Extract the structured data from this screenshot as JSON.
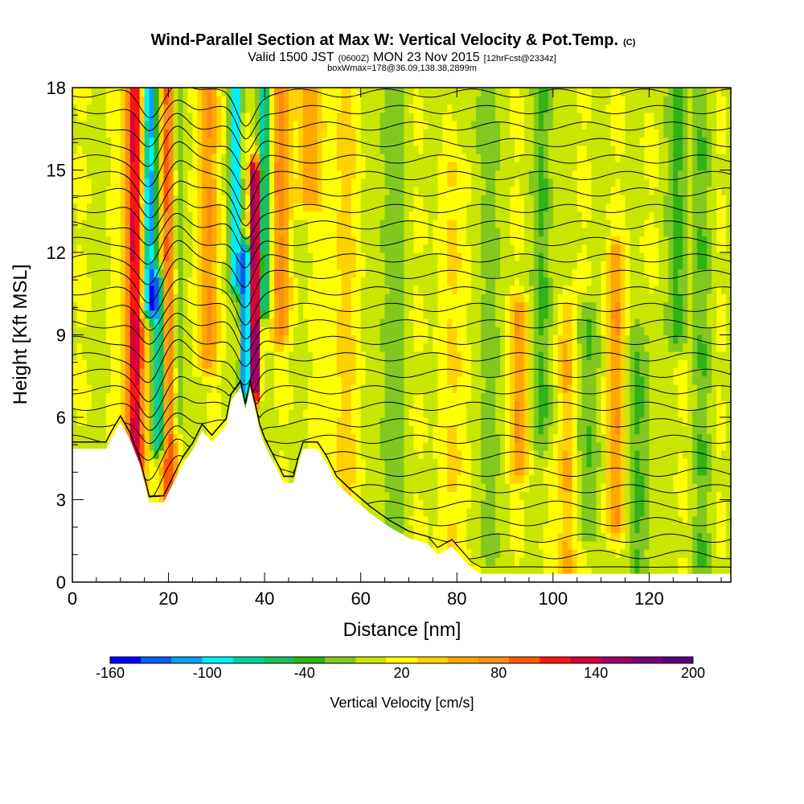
{
  "chart_data": {
    "type": "heatmap",
    "title": "Wind-Parallel Section at Max W: Vertical Velocity & Pot.Temp.",
    "title_mark": "(C)",
    "subtitle_parts": [
      "Valid 1500 JST",
      "(0600Z)",
      "MON 23 Nov 2015",
      "[12hrFcst@2334z]"
    ],
    "subtitle2": "boxWmax=178@36.09,138.38,2899m",
    "xlabel": "Distance [nm]",
    "ylabel": "Height [Kft MSL]",
    "xlim": [
      0,
      137
    ],
    "ylim": [
      0,
      18
    ],
    "x_ticks": [
      "0",
      "20",
      "40",
      "60",
      "80",
      "100",
      "120"
    ],
    "x_tick_values": [
      0,
      20,
      40,
      60,
      80,
      100,
      120
    ],
    "y_ticks": [
      "0",
      "3",
      "6",
      "9",
      "12",
      "15",
      "18"
    ],
    "y_tick_values": [
      0,
      3,
      6,
      9,
      12,
      15,
      18
    ],
    "grid": false,
    "colorbar": {
      "label": "Vertical Velocity [cm/s]",
      "tick_labels": [
        "-160",
        "-100",
        "-40",
        "20",
        "80",
        "140",
        "200"
      ],
      "tick_values": [
        -160,
        -100,
        -40,
        20,
        80,
        140,
        200
      ],
      "colors": [
        "#0000ff",
        "#0a5cf5",
        "#0aa0f0",
        "#00f0f0",
        "#00d2a0",
        "#18c064",
        "#30b414",
        "#82c81e",
        "#c8e600",
        "#ffff00",
        "#ffd200",
        "#ffa800",
        "#ff8c14",
        "#ff5a00",
        "#ff1414",
        "#d7003c",
        "#a00064",
        "#78007d",
        "#5a0082"
      ]
    },
    "terrain_kft": [
      [
        0,
        4.85
      ],
      [
        7,
        4.85
      ],
      [
        8,
        5.2
      ],
      [
        10,
        5.8
      ],
      [
        12,
        5.2
      ],
      [
        14,
        4.3
      ],
      [
        15,
        3.6
      ],
      [
        16,
        2.9
      ],
      [
        19,
        2.9
      ],
      [
        21,
        3.6
      ],
      [
        23,
        4.3
      ],
      [
        25,
        4.8
      ],
      [
        27,
        5.5
      ],
      [
        29,
        5.1
      ],
      [
        32,
        5.7
      ],
      [
        33,
        6.6
      ],
      [
        35,
        7.1
      ],
      [
        36,
        6.3
      ],
      [
        37,
        7.1
      ],
      [
        38,
        6.3
      ],
      [
        39,
        5.5
      ],
      [
        40,
        5.0
      ],
      [
        42,
        4.3
      ],
      [
        44,
        3.6
      ],
      [
        46,
        3.6
      ],
      [
        47,
        4.3
      ],
      [
        48,
        4.85
      ],
      [
        51,
        4.85
      ],
      [
        53,
        4.3
      ],
      [
        55,
        3.6
      ],
      [
        58,
        3.1
      ],
      [
        62,
        2.5
      ],
      [
        66,
        2.0
      ],
      [
        70,
        1.6
      ],
      [
        74,
        1.4
      ],
      [
        76,
        1.0
      ],
      [
        79,
        1.3
      ],
      [
        81,
        0.9
      ],
      [
        83,
        0.5
      ],
      [
        85,
        0.3
      ],
      [
        89,
        0.3
      ],
      [
        137,
        0.3
      ]
    ],
    "w_features": [
      {
        "x": 13,
        "w": 2.0,
        "amp": 130,
        "y0": 2.9,
        "y1": 18
      },
      {
        "x": 16,
        "w": 1.5,
        "amp": -140,
        "y0": 10,
        "y1": 18
      },
      {
        "x": 18,
        "w": 1.4,
        "amp": -110,
        "y0": 5,
        "y1": 11
      },
      {
        "x": 20,
        "w": 1.6,
        "amp": 100,
        "y0": 2.9,
        "y1": 18
      },
      {
        "x": 22,
        "w": 1.5,
        "amp": -50,
        "y0": 6,
        "y1": 18
      },
      {
        "x": 28,
        "w": 2.2,
        "amp": 60,
        "y0": 8,
        "y1": 18
      },
      {
        "x": 34,
        "w": 1.1,
        "amp": -120,
        "y0": 11,
        "y1": 18
      },
      {
        "x": 36,
        "w": 1.0,
        "amp": -160,
        "y0": 7,
        "y1": 12
      },
      {
        "x": 38,
        "w": 1.0,
        "amp": 190,
        "y0": 7,
        "y1": 15
      },
      {
        "x": 40,
        "w": 1.4,
        "amp": -90,
        "y0": 10,
        "y1": 18
      },
      {
        "x": 43,
        "w": 2.4,
        "amp": 60,
        "y0": 9,
        "y1": 18
      },
      {
        "x": 49,
        "w": 2.5,
        "amp": 50,
        "y0": 14,
        "y1": 18
      },
      {
        "x": 56,
        "w": 4.0,
        "amp": 25,
        "y0": 3,
        "y1": 18
      },
      {
        "x": 66,
        "w": 3.5,
        "amp": -25,
        "y0": 2,
        "y1": 18
      },
      {
        "x": 80,
        "w": 4.0,
        "amp": 20,
        "y0": 0.5,
        "y1": 15
      },
      {
        "x": 86,
        "w": 2.5,
        "amp": -30,
        "y0": 1,
        "y1": 18
      },
      {
        "x": 93,
        "w": 2.0,
        "amp": 55,
        "y0": 4,
        "y1": 10
      },
      {
        "x": 98,
        "w": 2.0,
        "amp": -40,
        "y0": 5,
        "y1": 18
      },
      {
        "x": 103,
        "w": 1.8,
        "amp": 50,
        "y0": 0.5,
        "y1": 10
      },
      {
        "x": 107,
        "w": 2.2,
        "amp": -40,
        "y0": 2,
        "y1": 10
      },
      {
        "x": 113,
        "w": 2.0,
        "amp": 55,
        "y0": 2,
        "y1": 12
      },
      {
        "x": 118,
        "w": 2.5,
        "amp": -35,
        "y0": 0.5,
        "y1": 9
      },
      {
        "x": 126,
        "w": 2.0,
        "amp": -45,
        "y0": 9,
        "y1": 18
      },
      {
        "x": 131,
        "w": 2.0,
        "amp": -30,
        "y0": 0.5,
        "y1": 18
      }
    ],
    "theta_isentropes": {
      "count": 30,
      "base_height_kft": 0.4,
      "spacing_kft": 0.6,
      "waves": [
        {
          "x": 16,
          "amp": -0.9,
          "w": 3.0
        },
        {
          "x": 36,
          "amp": -1.1,
          "w": 2.5
        },
        {
          "x": 22,
          "amp": 0.5,
          "w": 3.0
        }
      ]
    }
  }
}
